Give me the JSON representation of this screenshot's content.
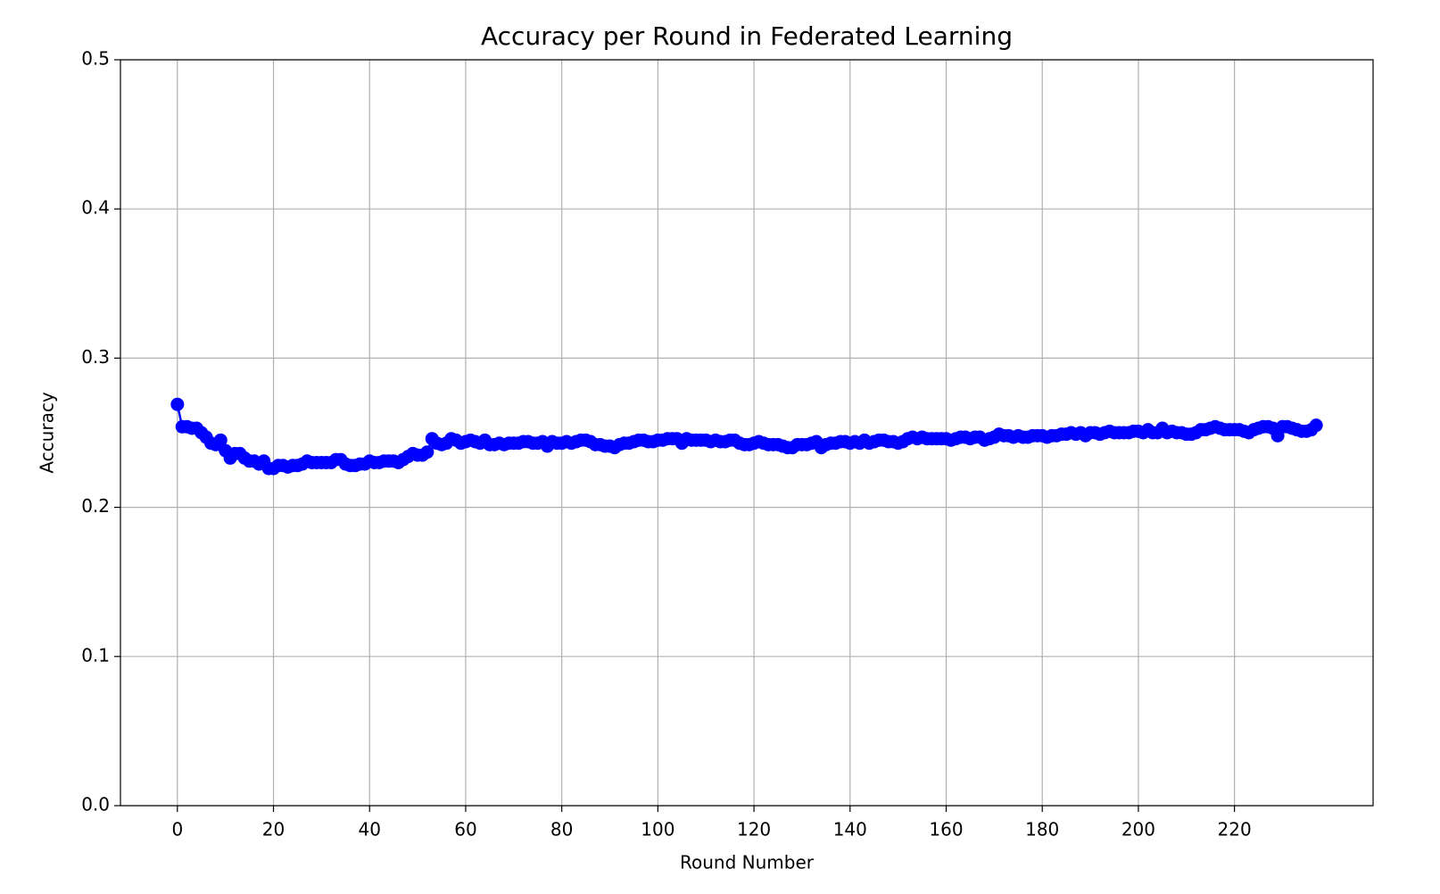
{
  "chart_data": {
    "type": "line",
    "title": "Accuracy per Round in Federated Learning",
    "x_label": "Round Number",
    "y_label": "Accuracy",
    "x": [
      0,
      1,
      2,
      3,
      4,
      5,
      6,
      7,
      8,
      9,
      10,
      11,
      12,
      13,
      14,
      15,
      16,
      17,
      18,
      19,
      20,
      21,
      22,
      23,
      24,
      25,
      26,
      27,
      28,
      29,
      30,
      31,
      32,
      33,
      34,
      35,
      36,
      37,
      38,
      39,
      40,
      41,
      42,
      43,
      44,
      45,
      46,
      47,
      48,
      49,
      50,
      51,
      52,
      53,
      54,
      55,
      56,
      57,
      58,
      59,
      60,
      61,
      62,
      63,
      64,
      65,
      66,
      67,
      68,
      69,
      70,
      71,
      72,
      73,
      74,
      75,
      76,
      77,
      78,
      79,
      80,
      81,
      82,
      83,
      84,
      85,
      86,
      87,
      88,
      89,
      90,
      91,
      92,
      93,
      94,
      95,
      96,
      97,
      98,
      99,
      100,
      101,
      102,
      103,
      104,
      105,
      106,
      107,
      108,
      109,
      110,
      111,
      112,
      113,
      114,
      115,
      116,
      117,
      118,
      119,
      120,
      121,
      122,
      123,
      124,
      125,
      126,
      127,
      128,
      129,
      130,
      131,
      132,
      133,
      134,
      135,
      136,
      137,
      138,
      139,
      140,
      141,
      142,
      143,
      144,
      145,
      146,
      147,
      148,
      149,
      150,
      151,
      152,
      153,
      154,
      155,
      156,
      157,
      158,
      159,
      160,
      161,
      162,
      163,
      164,
      165,
      166,
      167,
      168,
      169,
      170,
      171,
      172,
      173,
      174,
      175,
      176,
      177,
      178,
      179,
      180,
      181,
      182,
      183,
      184,
      185,
      186,
      187,
      188,
      189,
      190,
      191,
      192,
      193,
      194,
      195,
      196,
      197,
      198,
      199,
      200,
      201,
      202,
      203,
      204,
      205,
      206,
      207,
      208,
      209,
      210,
      211,
      212,
      213,
      214,
      215,
      216,
      217,
      218,
      219,
      220,
      221,
      222,
      223,
      224,
      225,
      226,
      227,
      228,
      229,
      230,
      231,
      232,
      233,
      234,
      235,
      236,
      237
    ],
    "series": [
      {
        "color": "#0000ff",
        "values": [
          0.269,
          0.254,
          0.254,
          0.253,
          0.253,
          0.25,
          0.247,
          0.243,
          0.242,
          0.245,
          0.238,
          0.233,
          0.236,
          0.236,
          0.233,
          0.231,
          0.231,
          0.229,
          0.231,
          0.226,
          0.226,
          0.228,
          0.228,
          0.227,
          0.228,
          0.228,
          0.229,
          0.231,
          0.23,
          0.23,
          0.23,
          0.23,
          0.23,
          0.232,
          0.232,
          0.229,
          0.228,
          0.228,
          0.229,
          0.229,
          0.231,
          0.23,
          0.23,
          0.231,
          0.231,
          0.231,
          0.23,
          0.232,
          0.234,
          0.236,
          0.235,
          0.235,
          0.237,
          0.246,
          0.243,
          0.242,
          0.243,
          0.246,
          0.245,
          0.243,
          0.244,
          0.245,
          0.244,
          0.243,
          0.245,
          0.242,
          0.242,
          0.243,
          0.242,
          0.243,
          0.243,
          0.243,
          0.244,
          0.244,
          0.243,
          0.243,
          0.244,
          0.241,
          0.244,
          0.243,
          0.243,
          0.244,
          0.243,
          0.244,
          0.245,
          0.245,
          0.244,
          0.242,
          0.242,
          0.241,
          0.241,
          0.24,
          0.242,
          0.243,
          0.243,
          0.244,
          0.245,
          0.245,
          0.244,
          0.244,
          0.245,
          0.245,
          0.246,
          0.246,
          0.246,
          0.243,
          0.246,
          0.245,
          0.245,
          0.245,
          0.245,
          0.244,
          0.245,
          0.244,
          0.244,
          0.245,
          0.245,
          0.243,
          0.242,
          0.242,
          0.243,
          0.244,
          0.243,
          0.242,
          0.242,
          0.242,
          0.241,
          0.24,
          0.24,
          0.242,
          0.242,
          0.242,
          0.243,
          0.244,
          0.24,
          0.242,
          0.243,
          0.243,
          0.244,
          0.244,
          0.243,
          0.244,
          0.243,
          0.245,
          0.243,
          0.244,
          0.245,
          0.245,
          0.244,
          0.244,
          0.243,
          0.244,
          0.246,
          0.247,
          0.246,
          0.247,
          0.246,
          0.246,
          0.246,
          0.246,
          0.246,
          0.245,
          0.246,
          0.247,
          0.247,
          0.246,
          0.247,
          0.247,
          0.245,
          0.246,
          0.247,
          0.249,
          0.248,
          0.248,
          0.247,
          0.248,
          0.247,
          0.247,
          0.248,
          0.248,
          0.248,
          0.247,
          0.248,
          0.248,
          0.249,
          0.249,
          0.25,
          0.249,
          0.25,
          0.248,
          0.25,
          0.25,
          0.249,
          0.25,
          0.251,
          0.25,
          0.25,
          0.25,
          0.25,
          0.251,
          0.251,
          0.25,
          0.252,
          0.25,
          0.25,
          0.253,
          0.25,
          0.251,
          0.25,
          0.25,
          0.249,
          0.249,
          0.25,
          0.252,
          0.252,
          0.253,
          0.254,
          0.253,
          0.252,
          0.252,
          0.252,
          0.252,
          0.251,
          0.25,
          0.252,
          0.253,
          0.254,
          0.254,
          0.253,
          0.248,
          0.254,
          0.254,
          0.253,
          0.252,
          0.251,
          0.251,
          0.252,
          0.255
        ]
      }
    ],
    "xlim": [
      -11.85,
      248.85
    ],
    "xticks": [
      0,
      20,
      40,
      60,
      80,
      100,
      120,
      140,
      160,
      180,
      200,
      220
    ],
    "ylim": [
      0,
      0.5
    ],
    "yticks": [
      {
        "value": 0,
        "label": "0.0"
      },
      0.1,
      0.2,
      0.3,
      0.4,
      0.5
    ],
    "grid": true
  }
}
